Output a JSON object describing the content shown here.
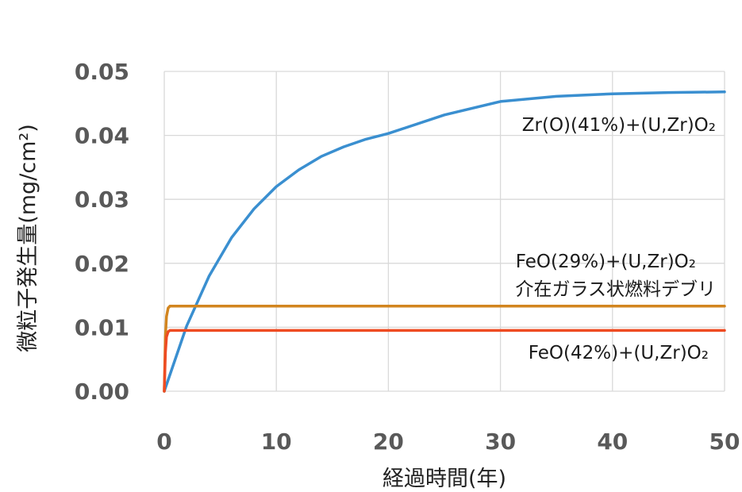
{
  "chart_data": {
    "type": "line",
    "xlabel": "経過時間(年)",
    "ylabel": "微粒子発生量(mg/cm²)",
    "xlim": [
      0,
      50
    ],
    "ylim": [
      0,
      0.05
    ],
    "x_ticks": [
      "0",
      "10",
      "20",
      "30",
      "40",
      "50"
    ],
    "y_ticks": [
      "0.00",
      "0.01",
      "0.02",
      "0.03",
      "0.04",
      "0.05"
    ],
    "grid": true,
    "series": [
      {
        "name": "Zr(O)(41%)+(U,Zr)O₂",
        "color": "#3a8fd0",
        "x": [
          0,
          2,
          4,
          6,
          8,
          10,
          12,
          14,
          16,
          18,
          20,
          25,
          30,
          35,
          40,
          45,
          50
        ],
        "y": [
          0,
          0.0102,
          0.018,
          0.024,
          0.0285,
          0.032,
          0.0346,
          0.0367,
          0.0382,
          0.0394,
          0.0403,
          0.0432,
          0.0453,
          0.0461,
          0.0465,
          0.0467,
          0.0468
        ]
      },
      {
        "name": "FeO(29%)+(U,Zr)O₂ 介在ガラス状燃料デブリ",
        "label_lines": [
          "FeO(29%)+(U,Zr)O₂",
          "介在ガラス状燃料デブリ"
        ],
        "color": "#d2851f",
        "x": [
          0,
          0.1,
          0.2,
          0.35,
          0.5,
          1,
          50
        ],
        "y": [
          0,
          0.0085,
          0.0117,
          0.013,
          0.0133,
          0.0133,
          0.0133
        ]
      },
      {
        "name": "FeO(42%)+(U,Zr)O₂",
        "color": "#ee4b22",
        "x": [
          0,
          0.1,
          0.2,
          0.35,
          0.5,
          1,
          50
        ],
        "y": [
          0,
          0.006,
          0.0085,
          0.0093,
          0.0095,
          0.0095,
          0.0095
        ]
      }
    ]
  }
}
